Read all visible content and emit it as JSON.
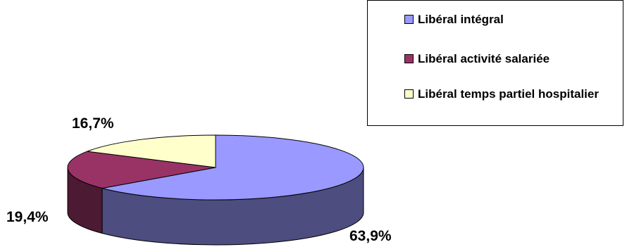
{
  "chart_data": {
    "type": "pie",
    "style": "3d",
    "title": "",
    "slices": [
      {
        "label": "Libéral intégral",
        "value": 63.9,
        "display": "63,9%",
        "color": "#9999ff",
        "side_color": "#4d4d80"
      },
      {
        "label": "Libéral activité salariée",
        "value": 19.4,
        "display": "19,4%",
        "color": "#993366",
        "side_color": "#4d1a33"
      },
      {
        "label": "Libéral temps partiel hospitalier",
        "value": 16.7,
        "display": "16,7%",
        "color": "#ffffcc",
        "side_color": "#808066"
      }
    ],
    "legend_position": "top-right"
  }
}
